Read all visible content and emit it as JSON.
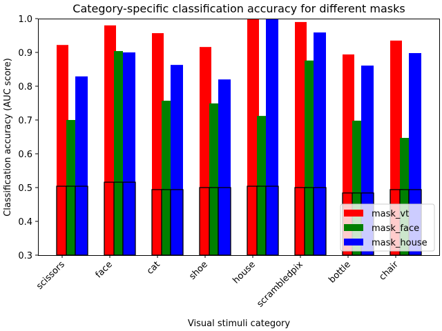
{
  "chart_data": {
    "type": "bar",
    "title": "Category-specific classification accuracy for different masks",
    "xlabel": "Visual stimuli category",
    "ylabel": "Classification accuracy (AUC score)",
    "ylim": [
      0.3,
      1.0
    ],
    "yticks": [
      "0.3",
      "0.4",
      "0.5",
      "0.6",
      "0.7",
      "0.8",
      "0.9",
      "1.0"
    ],
    "categories": [
      "scissors",
      "face",
      "cat",
      "shoe",
      "house",
      "scrambledpix",
      "bottle",
      "chair"
    ],
    "series": [
      {
        "name": "mask_vt",
        "color": "#ff0000",
        "values": [
          0.922,
          0.98,
          0.957,
          0.916,
          1.0,
          0.99,
          0.894,
          0.935
        ]
      },
      {
        "name": "mask_face",
        "color": "#008000",
        "values": [
          0.7,
          0.904,
          0.757,
          0.749,
          0.712,
          0.876,
          0.698,
          0.647
        ]
      },
      {
        "name": "mask_house",
        "color": "#0000ff",
        "values": [
          0.829,
          0.9,
          0.863,
          0.82,
          1.0,
          0.959,
          0.861,
          0.898
        ]
      }
    ],
    "chance_values": [
      0.504,
      0.516,
      0.494,
      0.5,
      0.504,
      0.5,
      0.484,
      0.494
    ],
    "legend_position": "lower-right",
    "grid": false
  }
}
